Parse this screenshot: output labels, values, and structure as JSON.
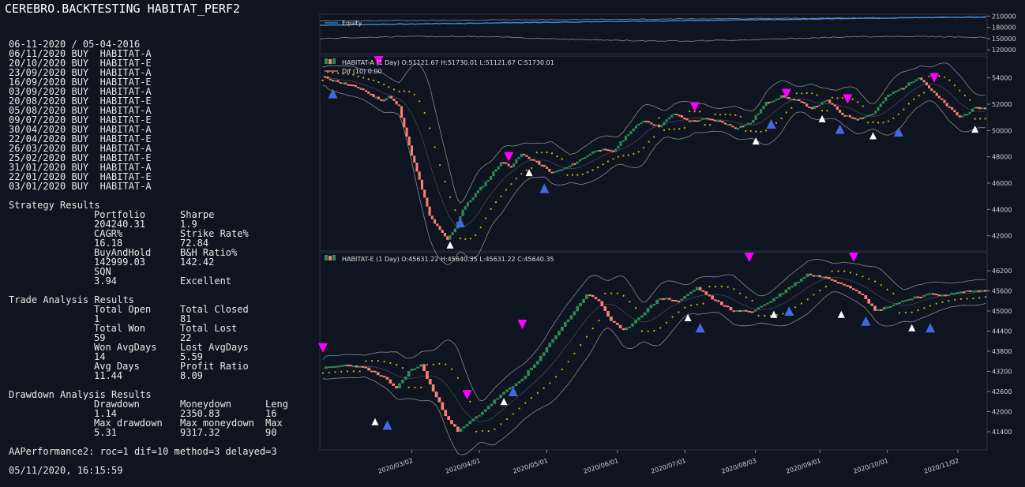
{
  "app": {
    "title": "CEREBRO.BACKTESTING HABITAT_PERF2"
  },
  "trades": {
    "header": "06-11-2020 / 05-04-2016",
    "rows": [
      "06/11/2020 BUY  HABITAT-A",
      "20/10/2020 BUY  HABITAT-E",
      "23/09/2020 BUY  HABITAT-A",
      "16/09/2020 BUY  HABITAT-E",
      "03/09/2020 BUY  HABITAT-A",
      "20/08/2020 BUY  HABITAT-E",
      "05/08/2020 BUY  HABITAT-A",
      "09/07/2020 BUY  HABITAT-E",
      "30/04/2020 BUY  HABITAT-A",
      "22/04/2020 BUY  HABITAT-E",
      "26/03/2020 BUY  HABITAT-A",
      "25/02/2020 BUY  HABITAT-E",
      "31/01/2020 BUY  HABITAT-A",
      "22/01/2020 BUY  HABITAT-E",
      "03/01/2020 BUY  HABITAT-A"
    ]
  },
  "strategy": {
    "title": "Strategy Results",
    "rows": [
      [
        "Portfolio",
        "Sharpe"
      ],
      [
        "204240.31",
        "1.9"
      ],
      [
        "CAGR%",
        "Strike Rate%"
      ],
      [
        "16.18",
        "72.84"
      ],
      [
        "BuyAndHold",
        "B&H Ratio%"
      ],
      [
        "142999.03",
        "142.42"
      ],
      [
        "SQN",
        ""
      ],
      [
        "3.94",
        "Excellent"
      ]
    ]
  },
  "trade_analysis": {
    "title": "Trade Analysis Results",
    "rows": [
      [
        "Total Open",
        "Total Closed"
      ],
      [
        "1",
        "81"
      ],
      [
        "Total Won",
        "Total Lost"
      ],
      [
        "59",
        "22"
      ],
      [
        "Won AvgDays",
        "Lost AvgDays"
      ],
      [
        "14",
        "5.59"
      ],
      [
        "Avg Days",
        "Profit Ratio"
      ],
      [
        "11.44",
        "8.09"
      ]
    ]
  },
  "drawdown": {
    "title": "Drawdown Analysis Results",
    "rows": [
      [
        "Drawdown",
        "Moneydown",
        "Leng"
      ],
      [
        "1.14",
        "2350.83",
        "16"
      ],
      [
        "Max drawdown",
        "Max moneydown",
        "Max"
      ],
      [
        "5.31",
        "9317.32",
        "90"
      ]
    ]
  },
  "footer": {
    "params": "AAPerformance2: roc=1 dif=10 method=3 delayed=3",
    "timestamp": "05/11/2020, 16:15:59"
  },
  "colors": {
    "background": "#0f1520",
    "up_candle": "#2e8b57",
    "down_candle": "#fa8072",
    "equity_line": "#3a8ee6",
    "signal_dots": "#d4b000",
    "buy_marker": "#4169e1",
    "sell_marker": "#ff00ff",
    "neutral_marker": "#ffffff",
    "band_line": "#8a8a8a"
  },
  "chart_data": [
    {
      "type": "line",
      "series": [
        {
          "name": "Equity"
        }
      ],
      "ylim": [
        110000,
        215000
      ],
      "y_ticks": [
        "210000",
        "180000",
        "150000",
        "120000"
      ],
      "y_tick_values": [
        210000,
        180000,
        150000,
        120000
      ]
    },
    {
      "type": "candlestick",
      "legend": "HABITAT-A (1 Day) O:51121.67 H:51730.01 L:51121.67 C:51730.01",
      "legend2": "Dif (10) 0.00",
      "ylim": [
        41200,
        55300
      ],
      "y_ticks": [
        "54000",
        "52000",
        "50000",
        "48000",
        "46000",
        "44000",
        "42000"
      ],
      "y_tick_values": [
        54000,
        52000,
        50000,
        48000,
        46000,
        44000,
        42000
      ],
      "close_path": [
        [
          0,
          54100
        ],
        [
          8,
          53600
        ],
        [
          15,
          53200
        ],
        [
          20,
          52600
        ],
        [
          24,
          52300
        ],
        [
          26,
          52600
        ],
        [
          30,
          51800
        ],
        [
          34,
          48800
        ],
        [
          38,
          46200
        ],
        [
          42,
          43500
        ],
        [
          46,
          42400
        ],
        [
          49,
          41700
        ],
        [
          52,
          42600
        ],
        [
          55,
          44000
        ],
        [
          60,
          45200
        ],
        [
          65,
          46300
        ],
        [
          70,
          47600
        ],
        [
          74,
          47300
        ],
        [
          78,
          48200
        ],
        [
          84,
          47600
        ],
        [
          90,
          46800
        ],
        [
          96,
          47200
        ],
        [
          102,
          47900
        ],
        [
          108,
          48600
        ],
        [
          114,
          48400
        ],
        [
          120,
          49800
        ],
        [
          126,
          50800
        ],
        [
          132,
          50300
        ],
        [
          138,
          51300
        ],
        [
          144,
          50700
        ],
        [
          150,
          50900
        ],
        [
          156,
          50700
        ],
        [
          162,
          50200
        ],
        [
          168,
          50600
        ],
        [
          174,
          52100
        ],
        [
          180,
          52600
        ],
        [
          186,
          52300
        ],
        [
          192,
          51700
        ],
        [
          198,
          52300
        ],
        [
          204,
          51200
        ],
        [
          210,
          50900
        ],
        [
          216,
          51300
        ],
        [
          222,
          52700
        ],
        [
          228,
          53300
        ],
        [
          234,
          54100
        ],
        [
          240,
          52800
        ],
        [
          246,
          51700
        ],
        [
          250,
          51000
        ],
        [
          256,
          51700
        ]
      ],
      "sell_markers": [
        [
          22,
          55600
        ],
        [
          73,
          48000
        ],
        [
          146,
          51800
        ],
        [
          182,
          52800
        ],
        [
          206,
          52400
        ],
        [
          240,
          54000
        ]
      ],
      "buy_markers": [
        [
          4,
          52800
        ],
        [
          54,
          43000
        ],
        [
          87,
          45600
        ],
        [
          176,
          50500
        ],
        [
          203,
          50100
        ],
        [
          226,
          49900
        ]
      ],
      "neutral_markers": [
        [
          50,
          41300
        ],
        [
          81,
          46800
        ],
        [
          170,
          49200
        ],
        [
          196,
          50900
        ],
        [
          216,
          49600
        ],
        [
          256,
          50100
        ]
      ]
    },
    {
      "type": "candlestick",
      "legend": "HABITAT-E (1 Day) O:45631.22 H:45640.35 L:45631.22 C:45640.35",
      "ylim": [
        41000,
        46600
      ],
      "y_ticks": [
        "46200",
        "45600",
        "45000",
        "44400",
        "43800",
        "43200",
        "42600",
        "42000",
        "41400"
      ],
      "y_tick_values": [
        46200,
        45600,
        45000,
        44400,
        43800,
        43200,
        42600,
        42000,
        41400
      ],
      "x_ticks": [
        "2020/03/02",
        "2020/04/01",
        "2020/05/01",
        "2020/06/01",
        "2020/07/01",
        "2020/08/03",
        "2020/09/01",
        "2020/10/01",
        "2020/11/02"
      ],
      "x_tick_values": [
        29,
        51,
        73,
        96,
        118,
        141,
        162,
        184,
        207
      ],
      "close_path": [
        [
          0,
          43300
        ],
        [
          8,
          43400
        ],
        [
          14,
          43300
        ],
        [
          20,
          43000
        ],
        [
          24,
          42700
        ],
        [
          28,
          43200
        ],
        [
          32,
          43400
        ],
        [
          36,
          42600
        ],
        [
          40,
          41900
        ],
        [
          44,
          41400
        ],
        [
          48,
          41700
        ],
        [
          52,
          42000
        ],
        [
          58,
          42500
        ],
        [
          64,
          42900
        ],
        [
          70,
          43500
        ],
        [
          76,
          44300
        ],
        [
          82,
          45000
        ],
        [
          86,
          45500
        ],
        [
          90,
          45300
        ],
        [
          94,
          44700
        ],
        [
          98,
          44400
        ],
        [
          104,
          44900
        ],
        [
          110,
          45400
        ],
        [
          116,
          45300
        ],
        [
          122,
          45700
        ],
        [
          128,
          45300
        ],
        [
          134,
          45000
        ],
        [
          140,
          45000
        ],
        [
          146,
          45300
        ],
        [
          152,
          45700
        ],
        [
          158,
          46100
        ],
        [
          164,
          46000
        ],
        [
          170,
          45800
        ],
        [
          176,
          45500
        ],
        [
          180,
          45000
        ],
        [
          186,
          45200
        ],
        [
          192,
          45400
        ],
        [
          198,
          45500
        ],
        [
          204,
          45500
        ],
        [
          210,
          45600
        ],
        [
          214,
          45600
        ]
      ],
      "sell_markers": [
        [
          0,
          43900
        ],
        [
          47,
          42500
        ],
        [
          65,
          44600
        ],
        [
          139,
          46600
        ],
        [
          173,
          46600
        ]
      ],
      "buy_markers": [
        [
          21,
          41600
        ],
        [
          62,
          42600
        ],
        [
          123,
          44500
        ],
        [
          152,
          45000
        ],
        [
          177,
          44700
        ],
        [
          198,
          44500
        ]
      ],
      "neutral_markers": [
        [
          17,
          41700
        ],
        [
          59,
          42300
        ],
        [
          119,
          44800
        ],
        [
          147,
          44900
        ],
        [
          169,
          44900
        ],
        [
          192,
          44500
        ]
      ]
    }
  ]
}
